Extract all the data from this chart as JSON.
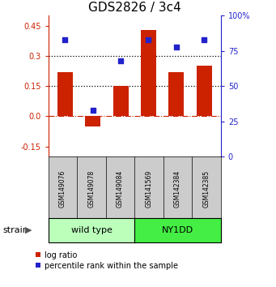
{
  "title": "GDS2826 / 3c4",
  "categories": [
    "GSM149076",
    "GSM149078",
    "GSM149084",
    "GSM141569",
    "GSM142384",
    "GSM142385"
  ],
  "log_ratio": [
    0.22,
    -0.05,
    0.15,
    0.43,
    0.22,
    0.25
  ],
  "percentile_rank": [
    83,
    33,
    68,
    83,
    78,
    83
  ],
  "groups": [
    {
      "label": "wild type",
      "indices": [
        0,
        1,
        2
      ],
      "color": "#bbffbb"
    },
    {
      "label": "NY1DD",
      "indices": [
        3,
        4,
        5
      ],
      "color": "#44ee44"
    }
  ],
  "ylim": [
    -0.2,
    0.5
  ],
  "yticks_left": [
    -0.15,
    0.0,
    0.15,
    0.3,
    0.45
  ],
  "yticks_right": [
    0,
    25,
    50,
    75,
    100
  ],
  "hlines": [
    0.15,
    0.3
  ],
  "bar_color": "#cc2200",
  "scatter_color": "#2222cc",
  "bar_width": 0.55,
  "title_fontsize": 11,
  "tick_fontsize": 7,
  "group_label_fontsize": 8,
  "strain_fontsize": 8,
  "legend_fontsize": 7
}
